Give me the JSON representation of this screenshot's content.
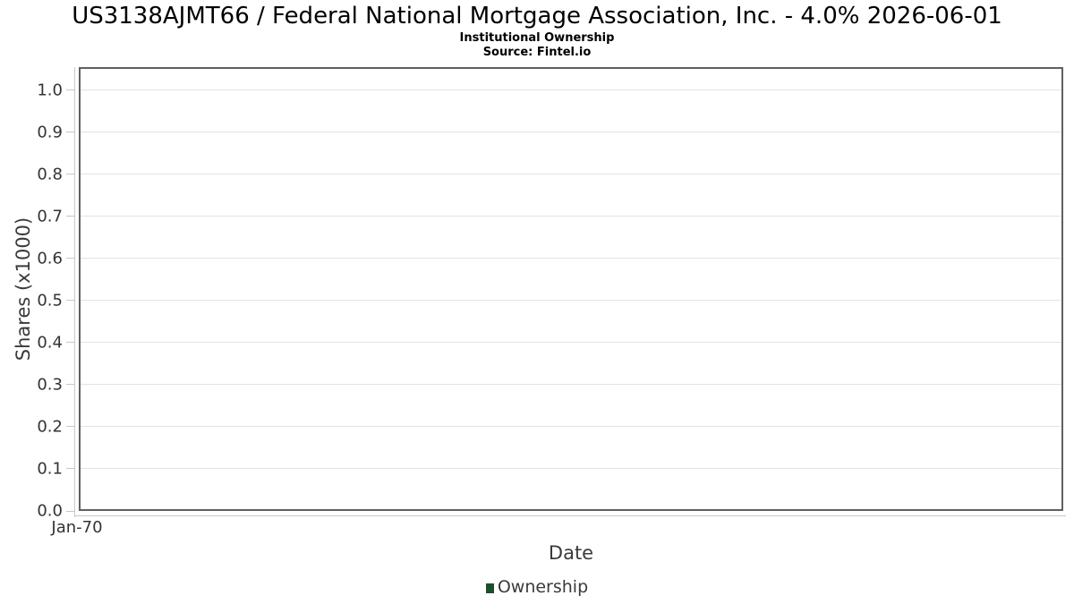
{
  "header": {
    "title": "US3138AJMT66 / Federal National Mortgage Association, Inc. - 4.0% 2026-06-01",
    "subtitle": "Institutional Ownership",
    "source": "Source: Fintel.io"
  },
  "chart_data": {
    "type": "line",
    "title": "US3138AJMT66 / Federal National Mortgage Association, Inc. - 4.0% 2026-06-01",
    "subtitle": "Institutional Ownership",
    "source_note": "Source: Fintel.io",
    "xlabel": "Date",
    "ylabel": "Shares (x1000)",
    "x_tick_labels": [
      "Jan-70"
    ],
    "y_ticks": [
      0.0,
      0.1,
      0.2,
      0.3,
      0.4,
      0.5,
      0.6,
      0.7,
      0.8,
      0.9,
      1.0
    ],
    "ylim": [
      0.0,
      1.055
    ],
    "grid": true,
    "legend_position": "bottom-center",
    "legend": [
      {
        "label": "Ownership",
        "color": "#1e4f2b",
        "marker": "square"
      }
    ],
    "series": [
      {
        "name": "Ownership",
        "x": [],
        "values": []
      }
    ]
  },
  "colors": {
    "background": "#ffffff",
    "plot_border": "#606060",
    "gridline": "#e3e3e3",
    "axis_line": "#c8c8c8",
    "tick_text": "#333333",
    "axis_label_text": "#3a3a3a",
    "title_text": "#000000",
    "legend_green": "#1e4f2b"
  }
}
